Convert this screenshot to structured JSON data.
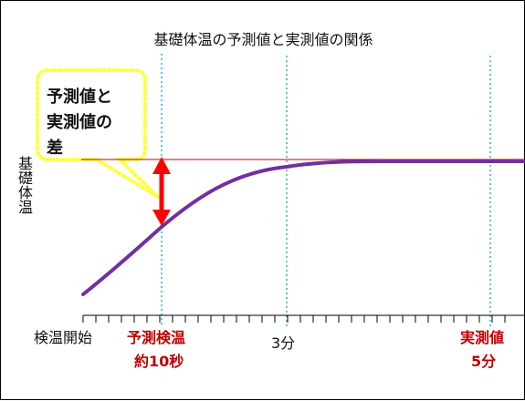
{
  "title": "基礎体温の予測値と実測値の関係",
  "y_axis_label": "基礎体温",
  "callout": {
    "line1": "予測値と",
    "line2": "実測値の",
    "line3": "差"
  },
  "x_labels": {
    "start": "検温開始",
    "predicted_line1": "予測検温",
    "predicted_line2": "約10秒",
    "three_min": "3分",
    "actual_line1": "実測値",
    "actual_line2": "5分"
  },
  "colors": {
    "curve": "#7030a0",
    "reference_line": "#c00000",
    "arrow": "#ff0000",
    "markers": "#31b0d0",
    "callout_border": "#ffff40",
    "label_red": "#c00000"
  }
}
